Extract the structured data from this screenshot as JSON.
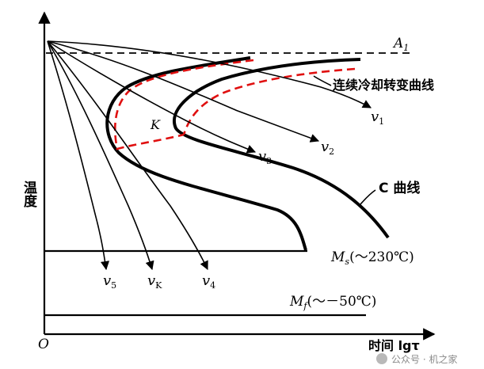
{
  "axes": {
    "origin": "O",
    "y_label": "温度",
    "x_label": "时间 lgτ"
  },
  "lines": {
    "a1_label_main": "A",
    "a1_label_sub": "1",
    "ms_main": "M",
    "ms_sub": "s",
    "ms_value": "(～230℃)",
    "mf_main": "M",
    "mf_sub": "f",
    "mf_value": "(～－50℃)"
  },
  "curves": {
    "c_curve_label": "C 曲线",
    "continuous_label": "连续冷却转变曲线",
    "k_point": "K"
  },
  "cooling": [
    {
      "main": "v",
      "sub": "1"
    },
    {
      "main": "v",
      "sub": "2"
    },
    {
      "main": "v",
      "sub": "3"
    },
    {
      "main": "v",
      "sub": "4"
    },
    {
      "main": "v",
      "sub": "K"
    },
    {
      "main": "v",
      "sub": "5"
    }
  ],
  "watermark": "公众号 · 机之家",
  "colors": {
    "ink": "#000000",
    "dashed_red": "#e01010",
    "watermark": "#8a8a8a"
  }
}
